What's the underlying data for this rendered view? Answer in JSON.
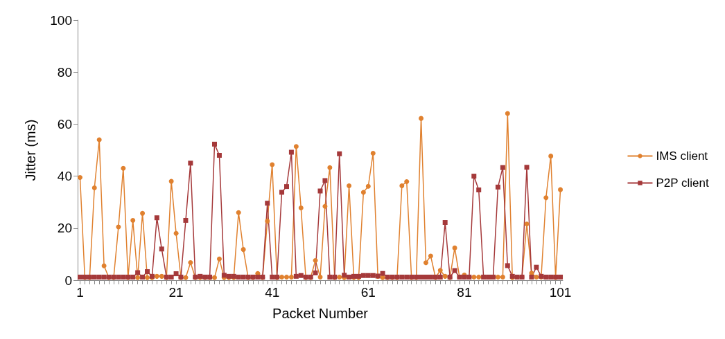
{
  "chart_data": {
    "type": "line",
    "xlabel": "Packet Number",
    "ylabel": "Jitter (ms)",
    "categories": [
      "1",
      null,
      null,
      null,
      null,
      null,
      null,
      null,
      null,
      null,
      null,
      null,
      null,
      null,
      null,
      null,
      null,
      null,
      null,
      null,
      "21",
      null,
      null,
      null,
      null,
      null,
      null,
      null,
      null,
      null,
      null,
      null,
      null,
      null,
      null,
      null,
      null,
      null,
      null,
      null,
      "41",
      null,
      null,
      null,
      null,
      null,
      null,
      null,
      null,
      null,
      null,
      null,
      null,
      null,
      null,
      null,
      null,
      null,
      null,
      null,
      "61",
      null,
      null,
      null,
      null,
      null,
      null,
      null,
      null,
      null,
      null,
      null,
      null,
      null,
      null,
      null,
      null,
      null,
      null,
      null,
      "81",
      null,
      null,
      null,
      null,
      null,
      null,
      null,
      null,
      null,
      null,
      null,
      null,
      null,
      null,
      null,
      null,
      null,
      null,
      null,
      "101"
    ],
    "ylim": [
      0,
      100
    ],
    "yticks": [
      0,
      20,
      40,
      60,
      80,
      100
    ],
    "grid": false,
    "legend": "right",
    "line_style": "solid",
    "series": [
      {
        "name": "IMS client",
        "color": "#e0812f",
        "marker": "circle",
        "values": [
          39.5,
          1,
          1,
          35.5,
          54,
          5.5,
          1,
          1,
          20.5,
          43,
          1,
          23,
          1,
          25.7,
          1,
          1,
          1.5,
          1.5,
          1,
          38,
          18,
          1,
          1,
          6.8,
          1,
          1,
          1,
          1,
          1,
          8.2,
          1,
          1,
          1,
          26,
          11.8,
          1,
          1,
          2.6,
          1,
          22.7,
          44.4,
          1,
          1.2,
          1.2,
          1.2,
          51.4,
          27.8,
          1,
          1,
          7.6,
          1.2,
          28.4,
          43.3,
          1,
          1.2,
          1,
          36.3,
          1,
          1,
          33.8,
          36.1,
          48.8,
          1.5,
          1,
          1,
          1,
          1,
          36.3,
          37.9,
          1,
          1,
          62.2,
          6.7,
          9.3,
          1,
          3.8,
          1.5,
          1,
          12.4,
          1.2,
          2,
          1.2,
          1.2,
          1.2,
          1.2,
          1.2,
          1.2,
          1.2,
          1.2,
          64.1,
          1,
          1.2,
          1.2,
          21.6,
          2.7,
          1.2,
          1.2,
          31.7,
          47.7,
          1,
          34.8
        ]
      },
      {
        "name": "P2P client",
        "color": "#a5393a",
        "marker": "square",
        "values": [
          1.2,
          1.2,
          1.2,
          1.2,
          1.2,
          1.2,
          1.2,
          1.2,
          1.2,
          1.2,
          1.2,
          1.2,
          2.9,
          1.2,
          3.3,
          1.5,
          24,
          12,
          1.2,
          1.2,
          2.5,
          1.2,
          23,
          45,
          1.2,
          1.5,
          1.2,
          1.2,
          52.3,
          48,
          1.9,
          1.5,
          1.5,
          1.2,
          1.2,
          1.2,
          1.2,
          1.2,
          1.2,
          29.6,
          1.2,
          1.2,
          33.8,
          36,
          49.2,
          1.5,
          1.8,
          1.2,
          1.2,
          2.8,
          34.3,
          38.3,
          1.2,
          1.2,
          48.6,
          1.9,
          1.2,
          1.5,
          1.5,
          1.8,
          1.8,
          1.8,
          1.6,
          2.6,
          1.2,
          1.2,
          1.2,
          1.2,
          1.2,
          1.2,
          1.2,
          1.2,
          1.2,
          1.2,
          1.2,
          1.2,
          22.2,
          1.2,
          3.7,
          1.2,
          1.2,
          1.2,
          40,
          34.7,
          1.2,
          1.2,
          1.2,
          35.8,
          43.3,
          5.6,
          1.5,
          1.2,
          1.2,
          43.4,
          1.2,
          5,
          1.5,
          1.2,
          1.2,
          1.2,
          1.2
        ]
      }
    ]
  }
}
